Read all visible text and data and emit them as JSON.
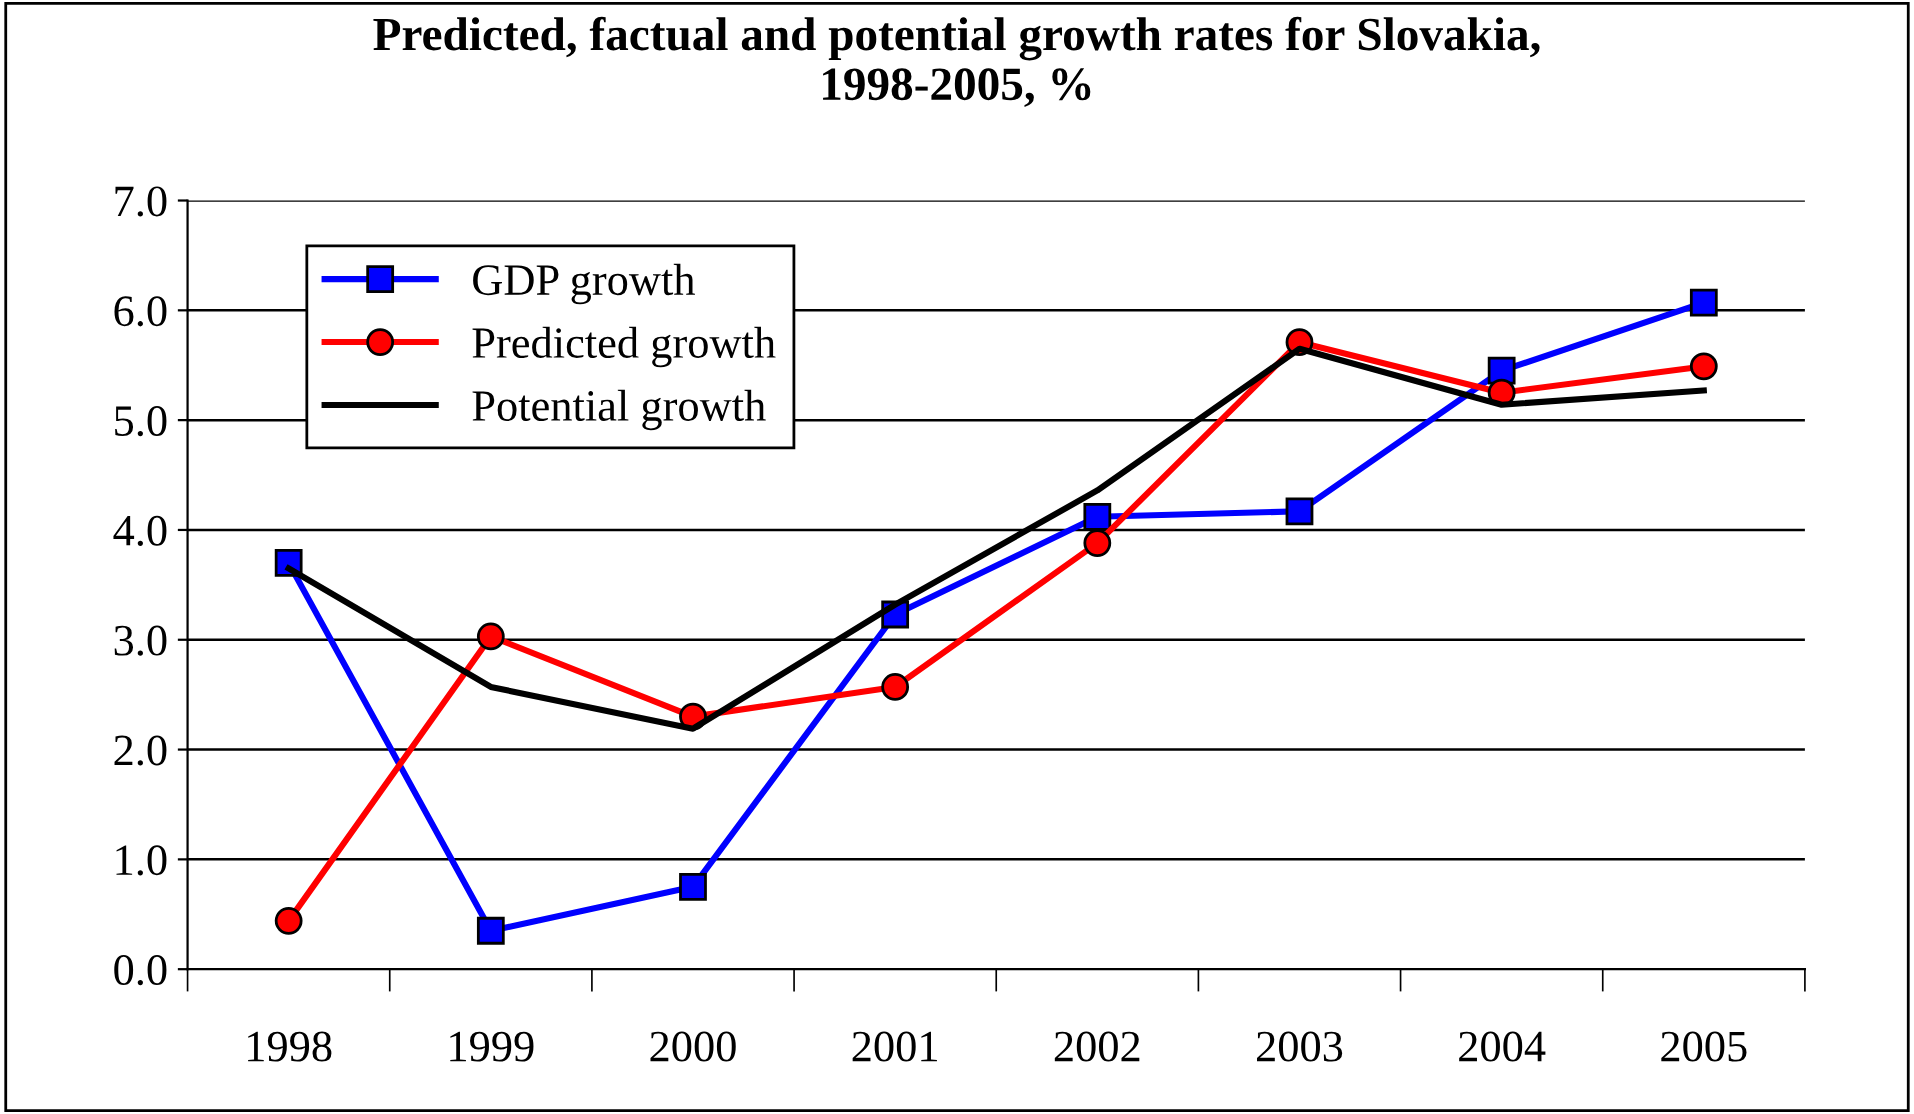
{
  "chart_data": {
    "type": "line",
    "title": "Predicted, factual and potential growth rates for Slovakia,\n1998-2005, %",
    "categories": [
      "1998",
      "1999",
      "2000",
      "2001",
      "2002",
      "2003",
      "2004",
      "2005"
    ],
    "series": [
      {
        "name": "GDP growth",
        "color": "#0000ff",
        "marker": "square",
        "values": [
          3.7,
          0.35,
          0.75,
          3.23,
          4.12,
          4.17,
          5.45,
          6.07
        ]
      },
      {
        "name": "Predicted growth",
        "color": "#ff0000",
        "marker": "circle",
        "values": [
          0.44,
          3.03,
          2.3,
          2.57,
          3.88,
          5.71,
          5.25,
          5.49
        ]
      },
      {
        "name": "Potential growth",
        "color": "#000000",
        "marker": "none",
        "values": [
          3.65,
          2.57,
          2.19,
          3.32,
          4.36,
          5.65,
          5.14,
          5.27
        ]
      }
    ],
    "ylim": [
      0,
      7
    ],
    "yticks": [
      {
        "value": 0,
        "label": "0.0"
      },
      {
        "value": 1,
        "label": "1.0"
      },
      {
        "value": 2,
        "label": "2.0"
      },
      {
        "value": 3,
        "label": "3.0"
      },
      {
        "value": 4,
        "label": "4.0"
      },
      {
        "value": 5,
        "label": "5.0"
      },
      {
        "value": 6,
        "label": "6.0"
      },
      {
        "value": 7,
        "label": "7.0"
      }
    ],
    "grid": "y",
    "legend": "top left",
    "line_style": "solid"
  }
}
